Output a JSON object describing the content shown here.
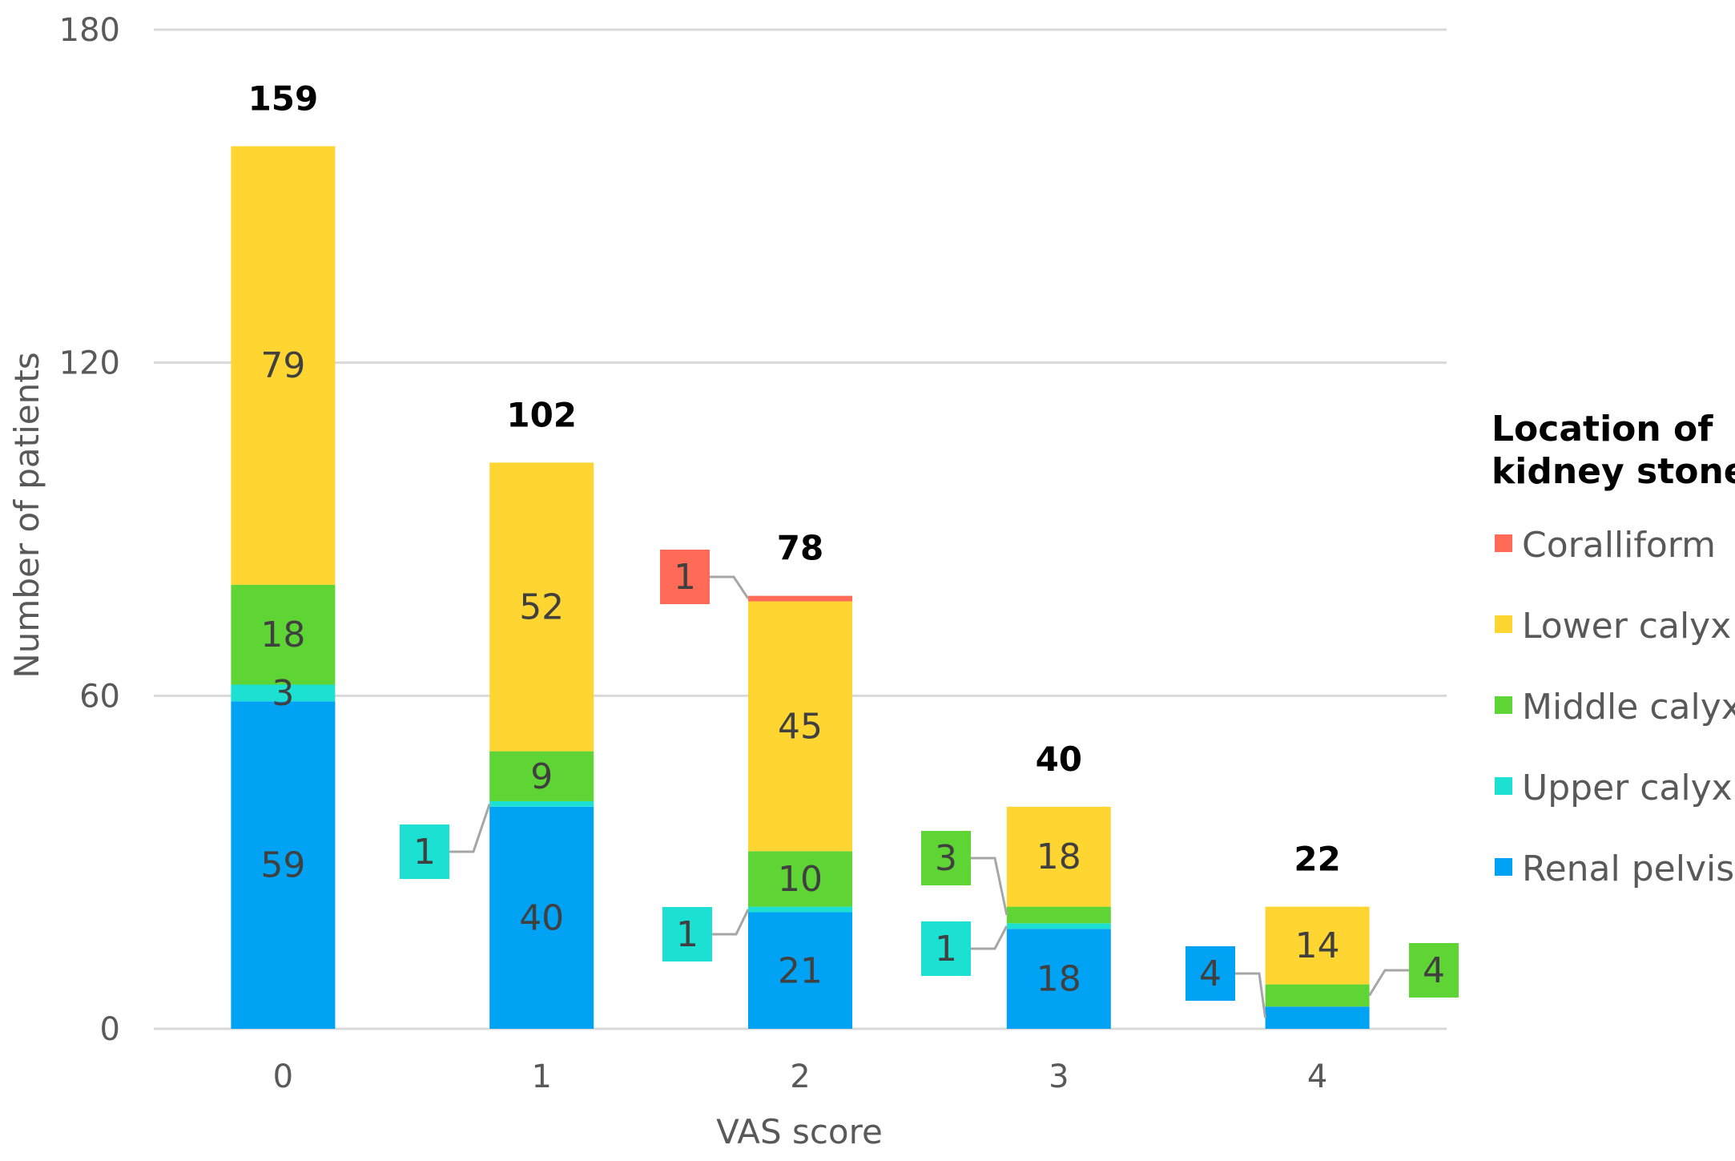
{
  "chart_data": {
    "type": "bar",
    "stacked": true,
    "categories": [
      "0",
      "1",
      "2",
      "3",
      "4"
    ],
    "series": [
      {
        "name": "Renal pelvis",
        "color": "#00A2F3",
        "values": [
          59,
          40,
          21,
          18,
          4
        ]
      },
      {
        "name": "Upper calyx",
        "color": "#1CE0D2",
        "values": [
          3,
          1,
          1,
          1,
          0
        ]
      },
      {
        "name": "Middle calyx",
        "color": "#5FD435",
        "values": [
          18,
          9,
          10,
          3,
          4
        ]
      },
      {
        "name": "Lower calyx",
        "color": "#FFD631",
        "values": [
          79,
          52,
          45,
          18,
          14
        ]
      },
      {
        "name": "Coralliform",
        "color": "#FF6B57",
        "values": [
          0,
          0,
          1,
          0,
          0
        ]
      }
    ],
    "segment_labels": [
      [
        "59",
        "3",
        "18",
        "79",
        ""
      ],
      [
        "40",
        "1",
        "9",
        "52",
        ""
      ],
      [
        "21",
        "1",
        "10",
        "45",
        "1"
      ],
      [
        "18",
        "1",
        "3",
        "18",
        ""
      ],
      [
        "4",
        "",
        "4",
        "14",
        ""
      ]
    ],
    "callouts": [
      {
        "category": 1,
        "series": 1
      },
      {
        "category": 2,
        "series": 4
      },
      {
        "category": 2,
        "series": 1
      },
      {
        "category": 3,
        "series": 2
      },
      {
        "category": 3,
        "series": 1
      },
      {
        "category": 4,
        "series": 0
      },
      {
        "category": 4,
        "series": 2
      }
    ],
    "totals": [
      "159",
      "102",
      "78",
      "40",
      "22"
    ],
    "xlabel": "VAS score",
    "ylabel": "Number of patients",
    "ylim": [
      0,
      180
    ],
    "yticks": [
      "0",
      "60",
      "120",
      "180"
    ],
    "grid": true,
    "legend": {
      "title_line1": "Location of",
      "title_line2": "kidney stones",
      "position": "right",
      "order": [
        4,
        3,
        2,
        1,
        0
      ]
    }
  }
}
